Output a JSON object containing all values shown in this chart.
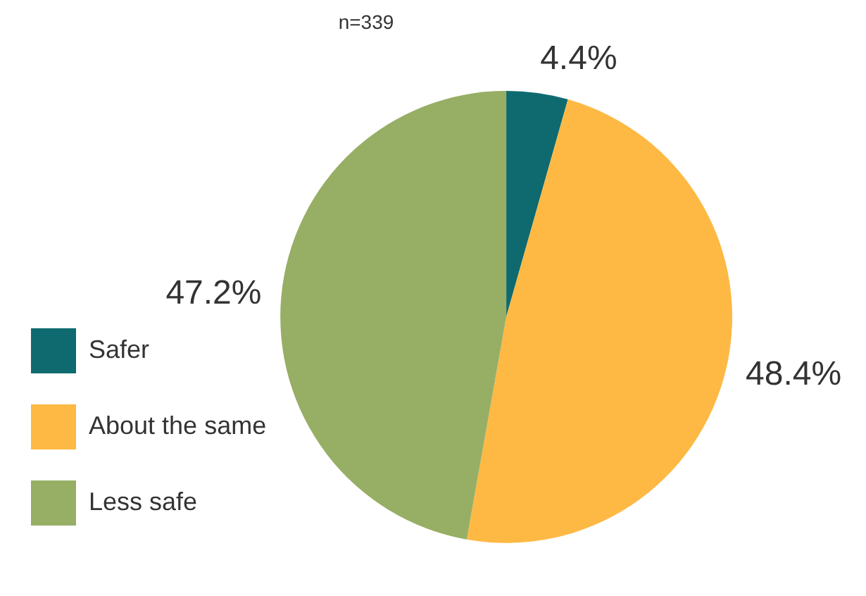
{
  "chart_data": {
    "type": "pie",
    "title": "n=339",
    "categories": [
      "Safer",
      "About the same",
      "Less safe"
    ],
    "values": [
      4.4,
      48.4,
      47.2
    ],
    "colors": [
      "#0f6a70",
      "#fdb944",
      "#97ae65"
    ],
    "value_labels": [
      "4.4%",
      "48.4%",
      "47.2%"
    ],
    "legend": "bottom left"
  }
}
